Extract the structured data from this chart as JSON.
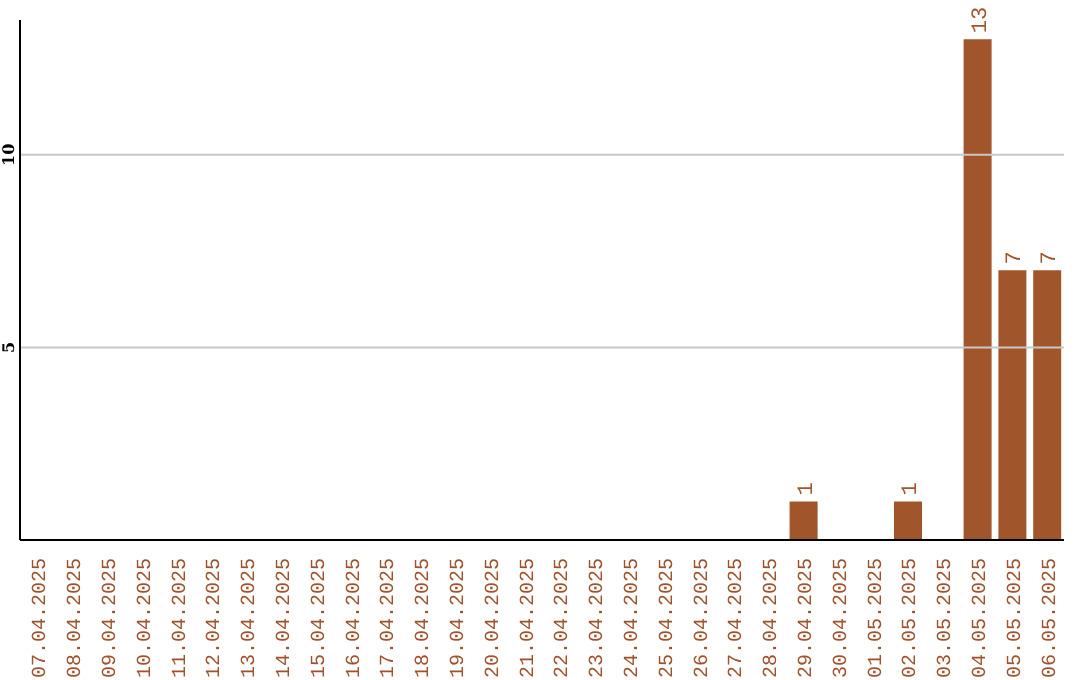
{
  "chart_data": {
    "type": "bar",
    "categories": [
      "07.04.2025",
      "08.04.2025",
      "09.04.2025",
      "10.04.2025",
      "11.04.2025",
      "12.04.2025",
      "13.04.2025",
      "14.04.2025",
      "15.04.2025",
      "16.04.2025",
      "17.04.2025",
      "18.04.2025",
      "19.04.2025",
      "20.04.2025",
      "21.04.2025",
      "22.04.2025",
      "23.04.2025",
      "24.04.2025",
      "25.04.2025",
      "26.04.2025",
      "27.04.2025",
      "28.04.2025",
      "29.04.2025",
      "30.04.2025",
      "01.05.2025",
      "02.05.2025",
      "03.05.2025",
      "04.05.2025",
      "05.05.2025",
      "06.05.2025"
    ],
    "values": [
      0,
      0,
      0,
      0,
      0,
      0,
      0,
      0,
      0,
      0,
      0,
      0,
      0,
      0,
      0,
      0,
      0,
      0,
      0,
      0,
      0,
      0,
      1,
      0,
      0,
      1,
      0,
      13,
      7,
      7
    ],
    "value_labels": [
      null,
      null,
      null,
      null,
      null,
      null,
      null,
      null,
      null,
      null,
      null,
      null,
      null,
      null,
      null,
      null,
      null,
      null,
      null,
      null,
      null,
      null,
      "1",
      null,
      null,
      "1",
      null,
      "13",
      "7",
      "7"
    ],
    "color": "#a0562a",
    "ylim": [
      0,
      13.5
    ],
    "yticks": [
      5,
      10
    ],
    "grid": "y"
  }
}
